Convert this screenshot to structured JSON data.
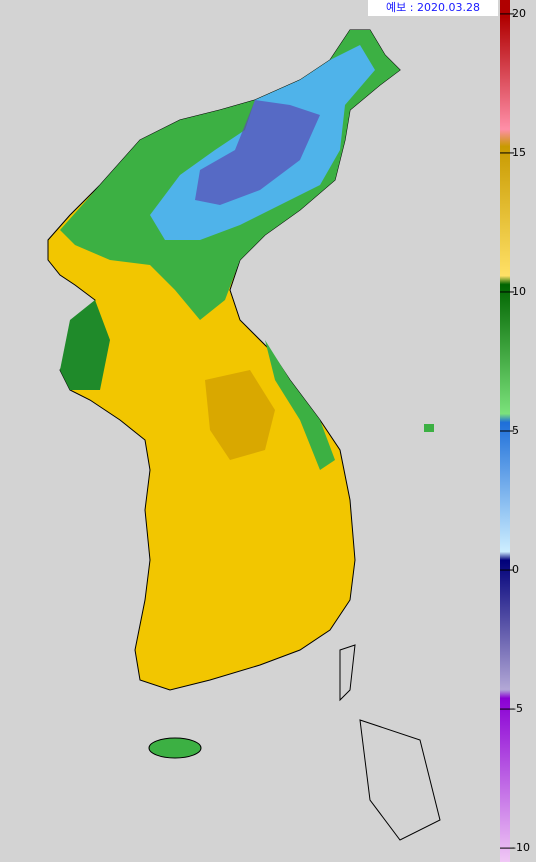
{
  "header": {
    "label": "예보 : 2020.03.28"
  },
  "colorbar": {
    "range": [
      -10.5,
      20.5
    ],
    "ticks": [
      20,
      15,
      10,
      5,
      0,
      -5,
      -10
    ]
  }
}
